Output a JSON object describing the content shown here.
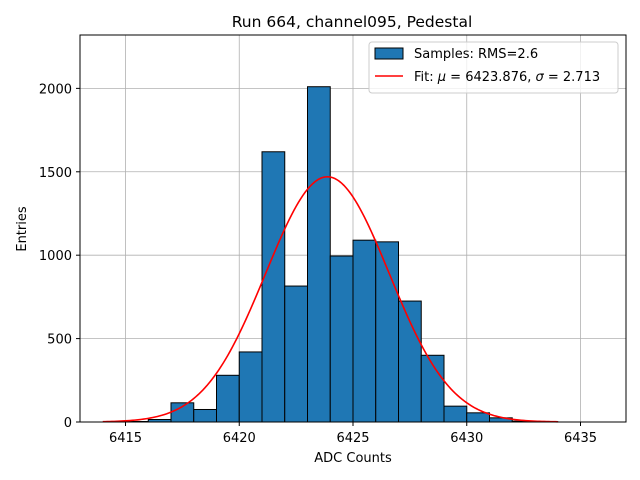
{
  "chart_data": {
    "type": "bar",
    "title": "Run 664, channel095, Pedestal",
    "xlabel": "ADC Counts",
    "ylabel": "Entries",
    "xlim": [
      6413,
      6437
    ],
    "ylim": [
      0,
      2320
    ],
    "grid": true,
    "legend_position": "top-right",
    "x_ticks": [
      6415,
      6420,
      6425,
      6430,
      6435
    ],
    "y_ticks": [
      0,
      500,
      1000,
      1500,
      2000
    ],
    "histogram": {
      "name": "Samples: RMS=2.6",
      "color": "#1f77b4",
      "bin_width": 1,
      "bin_edges_start": [
        6414,
        6415,
        6416,
        6417,
        6418,
        6419,
        6420,
        6421,
        6422,
        6423,
        6424,
        6425,
        6426,
        6427,
        6428,
        6429,
        6430,
        6431,
        6432,
        6433
      ],
      "values": [
        0,
        3,
        15,
        115,
        75,
        280,
        420,
        1620,
        815,
        2010,
        995,
        1090,
        1080,
        725,
        400,
        95,
        55,
        25,
        5,
        2
      ]
    },
    "fit": {
      "name": "Fit: μ = 6423.876, σ = 2.713",
      "label_prefix": "Fit: ",
      "mu_symbol": "μ",
      "mu_value": " = 6423.876, ",
      "sigma_symbol": "σ",
      "sigma_value": " = 2.713",
      "color": "#ff0000",
      "mu": 6423.876,
      "sigma": 2.713,
      "amplitude": 1470,
      "x_range": [
        6414,
        6434
      ]
    }
  }
}
